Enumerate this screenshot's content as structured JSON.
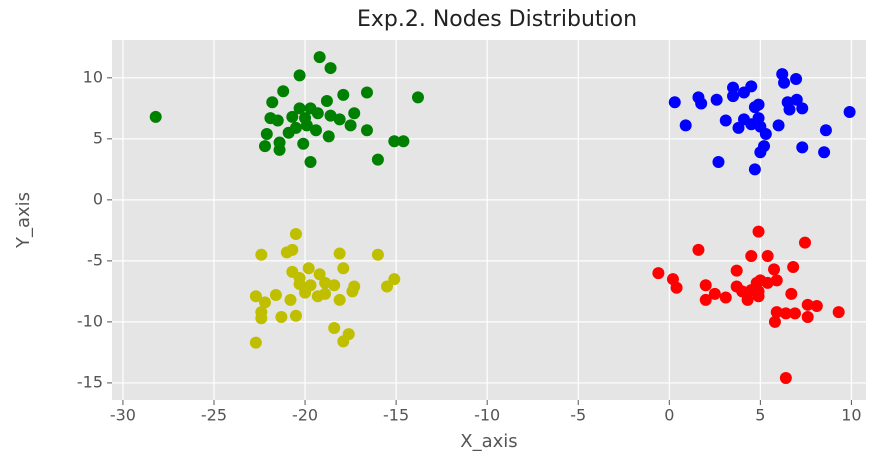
{
  "chart_data": {
    "type": "scatter",
    "title": "Exp.2. Nodes Distribution",
    "x_label": "X_axis",
    "y_label": "Y_axis",
    "xlim": [
      -30.6,
      10.8
    ],
    "ylim": [
      -16.4,
      13.1
    ],
    "xticks": [
      -30,
      -25,
      -20,
      -15,
      -10,
      -5,
      0,
      5,
      10
    ],
    "yticks": [
      -15,
      -10,
      -5,
      0,
      5,
      10
    ],
    "grid": true,
    "series": [
      {
        "color": "#008000",
        "x": [
          -28.2,
          -19.2,
          -18.6,
          -20.3,
          -13.8,
          -16.6,
          -21.2,
          -21.8,
          -17.3,
          -19.7,
          -19.3,
          -20.0,
          -20.7,
          -18.8,
          -17.9,
          -18.6,
          -17.5,
          -21.9,
          -21.5,
          -20.5,
          -20.9,
          -22.1,
          -19.9,
          -19.4,
          -18.7,
          -16.6,
          -22.2,
          -21.4,
          -21.4,
          -20.1,
          -19.7,
          -16.0,
          -15.1,
          -14.6,
          -18.1,
          -20.3
        ],
        "values": [
          6.8,
          11.7,
          10.8,
          10.2,
          8.4,
          8.8,
          8.9,
          8.0,
          7.1,
          7.5,
          7.1,
          6.7,
          6.8,
          8.1,
          8.6,
          6.9,
          6.1,
          6.7,
          6.5,
          5.9,
          5.5,
          5.4,
          6.1,
          5.7,
          5.2,
          5.7,
          4.4,
          4.1,
          4.7,
          4.6,
          3.1,
          3.3,
          4.8,
          4.8,
          6.6,
          7.5
        ]
      },
      {
        "color": "#0000ff",
        "x": [
          0.3,
          1.75,
          1.6,
          2.6,
          3.5,
          3.5,
          4.1,
          4.5,
          6.2,
          6.96,
          6.3,
          4.7,
          4.9,
          6.5,
          7.0,
          7.3,
          6.6,
          9.9,
          0.9,
          3.1,
          4.1,
          4.5,
          3.8,
          5.0,
          6.0,
          5.3,
          8.6,
          7.3,
          8.5,
          5.2,
          5.0,
          2.7,
          4.7,
          4.9
        ],
        "values": [
          8.0,
          7.9,
          8.4,
          8.2,
          8.5,
          9.2,
          8.8,
          9.3,
          10.3,
          9.9,
          9.6,
          7.6,
          7.8,
          8.0,
          8.2,
          7.5,
          7.4,
          7.2,
          6.1,
          6.5,
          6.6,
          6.2,
          5.9,
          6.0,
          6.1,
          5.4,
          5.7,
          4.3,
          3.9,
          4.4,
          3.9,
          3.1,
          2.5,
          6.7
        ]
      },
      {
        "color": "#bfbf00",
        "x": [
          -20.5,
          -22.4,
          -21.0,
          -20.7,
          -18.1,
          -16.0,
          -19.8,
          -20.7,
          -17.9,
          -19.2,
          -15.1,
          -15.5,
          -17.3,
          -17.4,
          -20.3,
          -19.7,
          -18.9,
          -18.4,
          -20.0,
          -19.3,
          -18.9,
          -18.1,
          -22.7,
          -21.6,
          -20.8,
          -22.2,
          -22.4,
          -22.4,
          -21.3,
          -20.5,
          -18.4,
          -17.6,
          -17.9,
          -22.7,
          -20.3
        ],
        "values": [
          -2.8,
          -4.5,
          -4.3,
          -4.1,
          -4.4,
          -4.5,
          -5.6,
          -5.9,
          -5.6,
          -6.1,
          -6.5,
          -7.1,
          -7.1,
          -7.5,
          -6.9,
          -7.0,
          -6.8,
          -7.0,
          -7.6,
          -7.9,
          -7.7,
          -8.2,
          -7.9,
          -7.8,
          -8.2,
          -8.4,
          -9.2,
          -9.7,
          -9.6,
          -9.5,
          -10.5,
          -11.0,
          -11.6,
          -11.7,
          -6.4
        ]
      },
      {
        "color": "#ff0000",
        "x": [
          -0.6,
          0.2,
          0.4,
          1.6,
          4.9,
          7.45,
          4.5,
          5.4,
          6.8,
          3.7,
          5.75,
          2.0,
          3.7,
          4.8,
          5.0,
          5.4,
          5.9,
          4.5,
          4.9,
          4.0,
          3.1,
          2.5,
          2.0,
          4.3,
          4.9,
          6.7,
          7.6,
          8.1,
          9.3,
          5.9,
          6.4,
          6.9,
          7.6,
          5.8,
          6.4
        ],
        "values": [
          -6.0,
          -6.5,
          -7.2,
          -4.1,
          -2.6,
          -3.5,
          -4.6,
          -4.6,
          -5.5,
          -5.8,
          -5.7,
          -7.0,
          -7.1,
          -6.8,
          -6.6,
          -6.8,
          -6.6,
          -7.4,
          -7.5,
          -7.5,
          -8.0,
          -7.7,
          -8.2,
          -8.2,
          -7.9,
          -7.7,
          -8.6,
          -8.7,
          -9.2,
          -9.2,
          -9.3,
          -9.3,
          -9.6,
          -10.0,
          -14.6
        ]
      }
    ]
  }
}
